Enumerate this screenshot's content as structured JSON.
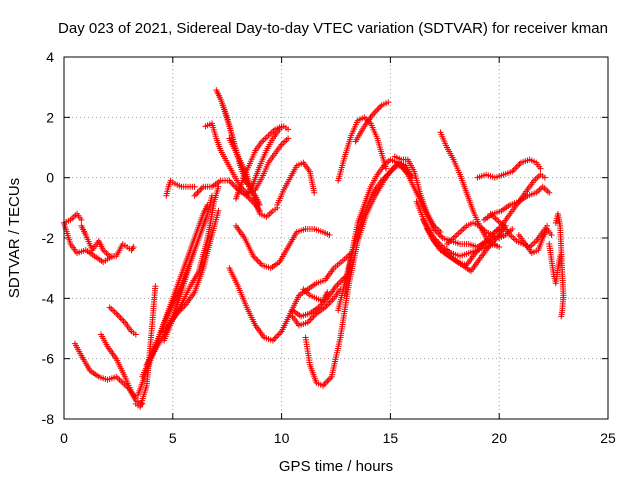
{
  "chart_data": {
    "type": "scatter",
    "title": "Day 023 of 2021, Sidereal Day-to-day VTEC variation (SDTVAR) for receiver kman",
    "xlabel": "GPS time / hours",
    "ylabel": "SDTVAR / TECUs",
    "xlim": [
      0,
      25
    ],
    "ylim": [
      -8,
      4
    ],
    "xticks": [
      "0",
      "5",
      "10",
      "15",
      "20",
      "25"
    ],
    "yticks": [
      "-8",
      "-6",
      "-4",
      "-2",
      "0",
      "2",
      "4"
    ],
    "grid": true,
    "marker": "+",
    "color": "#ff0000",
    "series": [
      {
        "x": [
          0.0,
          0.3,
          0.6,
          0.8
        ],
        "y": [
          -1.5,
          -1.4,
          -1.2,
          -1.4
        ]
      },
      {
        "x": [
          0.8,
          1.0,
          1.3,
          1.6,
          1.8,
          2.1,
          2.4,
          2.7,
          2.9,
          3.1,
          3.2
        ],
        "y": [
          -1.6,
          -1.9,
          -2.4,
          -2.1,
          -2.4,
          -2.6,
          -2.6,
          -2.2,
          -2.3,
          -2.4,
          -2.3
        ]
      },
      {
        "x": [
          0.0,
          0.3,
          0.6,
          1.0,
          1.4,
          1.8,
          2.0,
          2.3
        ],
        "y": [
          -1.5,
          -2.2,
          -2.5,
          -2.4,
          -2.6,
          -2.8,
          -2.7,
          -2.6
        ]
      },
      {
        "x": [
          0.5,
          0.8,
          1.2,
          1.6,
          2.0,
          2.4,
          2.7,
          3.0,
          3.3,
          3.6
        ],
        "y": [
          -5.5,
          -5.9,
          -6.4,
          -6.6,
          -6.7,
          -6.6,
          -6.8,
          -7.0,
          -7.4,
          -7.5
        ]
      },
      {
        "x": [
          1.7,
          2.0,
          2.4,
          2.8,
          3.1,
          3.3
        ],
        "y": [
          -5.2,
          -5.6,
          -6.0,
          -6.6,
          -7.1,
          -7.3
        ]
      },
      {
        "x": [
          2.1,
          2.4,
          2.8,
          3.1,
          3.3
        ],
        "y": [
          -4.3,
          -4.5,
          -4.8,
          -5.1,
          -5.2
        ]
      },
      {
        "x": [
          3.3,
          3.5,
          3.8,
          4.0,
          4.2
        ],
        "y": [
          -7.5,
          -7.6,
          -6.9,
          -5.3,
          -3.6
        ]
      },
      {
        "x": [
          3.4,
          3.8,
          4.2,
          4.6,
          5.0,
          5.4,
          5.8,
          6.1,
          6.4,
          6.6
        ],
        "y": [
          -7.2,
          -6.4,
          -5.6,
          -4.8,
          -4.0,
          -3.2,
          -2.4,
          -1.8,
          -1.2,
          -0.9
        ]
      },
      {
        "x": [
          3.6,
          4.0,
          4.4,
          4.8,
          5.2,
          5.6,
          6.0,
          6.3,
          6.6,
          6.8
        ],
        "y": [
          -6.6,
          -5.9,
          -5.2,
          -4.5,
          -3.9,
          -3.2,
          -2.4,
          -1.8,
          -1.2,
          -0.6
        ]
      },
      {
        "x": [
          3.8,
          4.2,
          4.6,
          5.0,
          5.4,
          5.8,
          6.2,
          6.5
        ],
        "y": [
          -6.2,
          -5.7,
          -5.2,
          -4.6,
          -3.8,
          -2.8,
          -2.0,
          -1.4
        ]
      },
      {
        "x": [
          4.5,
          4.8,
          5.2,
          5.6,
          6.0,
          6.4,
          6.8,
          7.1
        ],
        "y": [
          -5.1,
          -4.9,
          -4.5,
          -4.2,
          -3.8,
          -3.0,
          -1.9,
          -1.1
        ]
      },
      {
        "x": [
          4.6,
          5.0,
          5.4,
          5.8,
          6.2,
          6.6,
          6.9,
          7.1
        ],
        "y": [
          -5.4,
          -4.7,
          -4.2,
          -3.6,
          -3.1,
          -2.0,
          -0.8,
          -0.3
        ]
      },
      {
        "x": [
          4.7,
          4.8,
          4.9,
          5.1,
          5.4,
          5.7,
          6.0
        ],
        "y": [
          -0.6,
          -0.3,
          -0.1,
          -0.2,
          -0.3,
          -0.3,
          -0.3
        ]
      },
      {
        "x": [
          6.0,
          6.4,
          6.8,
          7.2,
          7.6,
          8.0,
          8.4,
          8.8,
          9.0
        ],
        "y": [
          -0.6,
          -0.3,
          -0.3,
          -0.1,
          -0.1,
          -0.4,
          -0.6,
          -0.9,
          -1.1
        ]
      },
      {
        "x": [
          6.5,
          6.8,
          7.0,
          7.2,
          7.5,
          7.8,
          8.1,
          8.4,
          8.6,
          8.7
        ],
        "y": [
          1.7,
          1.8,
          1.3,
          0.9,
          0.5,
          0.1,
          -0.3,
          -0.5,
          -0.5,
          -0.2
        ]
      },
      {
        "x": [
          7.0,
          7.2,
          7.5,
          7.8,
          8.1,
          8.4
        ],
        "y": [
          2.9,
          2.6,
          2.0,
          1.2,
          0.4,
          -0.2
        ]
      },
      {
        "x": [
          7.3,
          7.6,
          7.9,
          8.2,
          8.5,
          8.8,
          9.0
        ],
        "y": [
          2.4,
          1.7,
          0.9,
          0.2,
          -0.3,
          -0.6,
          -0.9
        ]
      },
      {
        "x": [
          7.6,
          8.0,
          8.4,
          8.7,
          9.0,
          9.3,
          9.6,
          9.8
        ],
        "y": [
          1.3,
          0.7,
          0.1,
          -0.6,
          -1.2,
          -1.3,
          -1.1,
          -1.0
        ]
      },
      {
        "x": [
          8.4,
          8.7,
          9.0,
          9.3,
          9.6,
          9.9,
          10.1,
          10.3
        ],
        "y": [
          -0.6,
          -0.2,
          0.4,
          0.9,
          1.3,
          1.6,
          1.7,
          1.6
        ]
      },
      {
        "x": [
          8.8,
          9.1,
          9.4,
          9.7,
          10.0,
          10.3
        ],
        "y": [
          -0.4,
          0.0,
          0.5,
          0.8,
          1.1,
          1.3
        ]
      },
      {
        "x": [
          7.9,
          8.2,
          8.5,
          8.8,
          9.1,
          9.4,
          9.7,
          10.0
        ],
        "y": [
          -0.7,
          -0.1,
          0.4,
          0.9,
          1.2,
          1.4,
          1.6,
          1.7
        ]
      },
      {
        "x": [
          9.8,
          10.1,
          10.4,
          10.7,
          11.0,
          11.3,
          11.5
        ],
        "y": [
          -0.9,
          -0.4,
          0.0,
          0.4,
          0.5,
          0.2,
          -0.5
        ]
      },
      {
        "x": [
          7.9,
          8.3,
          8.7,
          9.1,
          9.5,
          9.9,
          10.3,
          10.7,
          11.1,
          11.5,
          11.9,
          12.2
        ],
        "y": [
          -1.6,
          -2.0,
          -2.6,
          -2.9,
          -3.0,
          -2.8,
          -2.3,
          -1.8,
          -1.7,
          -1.7,
          -1.8,
          -1.9
        ]
      },
      {
        "x": [
          7.6,
          8.0,
          8.4,
          8.8,
          9.2,
          9.6,
          10.0,
          10.4,
          10.8,
          11.2,
          11.6,
          12.0,
          12.4,
          12.9,
          13.2
        ],
        "y": [
          -3.0,
          -3.6,
          -4.3,
          -4.9,
          -5.3,
          -5.4,
          -5.1,
          -4.5,
          -3.9,
          -3.7,
          -3.5,
          -3.4,
          -3.0,
          -2.7,
          -2.5
        ]
      },
      {
        "x": [
          10.5,
          10.9,
          11.3,
          11.7,
          12.1,
          12.5,
          12.9
        ],
        "y": [
          -4.4,
          -4.6,
          -4.5,
          -4.3,
          -4.0,
          -3.6,
          -3.3
        ]
      },
      {
        "x": [
          10.5,
          10.8,
          11.2,
          11.6,
          12.0,
          12.4,
          12.7
        ],
        "y": [
          -4.6,
          -4.9,
          -4.8,
          -4.5,
          -4.3,
          -4.0,
          -3.7
        ]
      },
      {
        "x": [
          11.0,
          11.3,
          11.6,
          11.9,
          12.1
        ],
        "y": [
          -3.7,
          -3.9,
          -4.0,
          -4.1,
          -3.8
        ]
      },
      {
        "x": [
          11.1,
          11.3,
          11.6,
          11.9,
          12.3,
          12.7,
          13.1,
          13.5,
          13.9,
          14.3,
          14.7,
          15.1,
          15.4,
          15.7,
          16.0
        ],
        "y": [
          -5.3,
          -6.2,
          -6.8,
          -6.9,
          -6.6,
          -5.3,
          -3.5,
          -2.1,
          -1.2,
          -0.6,
          -0.1,
          0.3,
          0.5,
          0.4,
          0.0
        ]
      },
      {
        "x": [
          12.6,
          13.0,
          13.4,
          13.8,
          14.2,
          14.6,
          15.0,
          15.3,
          15.6,
          15.9
        ],
        "y": [
          -4.4,
          -3.2,
          -2.1,
          -1.2,
          -0.5,
          -0.1,
          0.2,
          0.4,
          0.4,
          0.1
        ]
      },
      {
        "x": [
          12.9,
          13.2,
          13.5,
          13.8,
          14.1,
          14.4,
          14.7,
          15.0,
          15.3,
          15.6,
          15.9
        ],
        "y": [
          -3.9,
          -2.6,
          -1.5,
          -0.9,
          -0.3,
          0.1,
          0.4,
          0.6,
          0.5,
          0.3,
          0.1
        ]
      },
      {
        "x": [
          12.6,
          12.9,
          13.2,
          13.5,
          13.8,
          14.1,
          14.4,
          14.6,
          14.8
        ],
        "y": [
          -0.1,
          0.7,
          1.4,
          1.9,
          2.0,
          1.8,
          1.3,
          0.8,
          0.3
        ]
      },
      {
        "x": [
          13.4,
          13.8,
          14.2,
          14.6,
          14.9
        ],
        "y": [
          1.2,
          1.7,
          2.1,
          2.4,
          2.5
        ]
      },
      {
        "x": [
          15.2,
          15.5,
          15.8,
          16.1,
          16.4,
          16.7,
          17.0,
          17.3
        ],
        "y": [
          0.7,
          0.6,
          0.6,
          0.2,
          -0.6,
          -1.2,
          -1.6,
          -1.8
        ]
      },
      {
        "x": [
          15.4,
          15.8,
          16.2,
          16.6,
          17.0,
          17.4,
          17.8,
          18.2,
          18.6,
          19.0,
          19.4,
          19.8,
          20.2
        ],
        "y": [
          0.5,
          0.1,
          -0.5,
          -1.1,
          -1.7,
          -2.0,
          -2.1,
          -2.2,
          -2.2,
          -2.3,
          -2.1,
          -1.8,
          -1.7
        ]
      },
      {
        "x": [
          16.2,
          16.6,
          17.0,
          17.4,
          17.8,
          18.2,
          18.6,
          19.0,
          19.4,
          19.8
        ],
        "y": [
          -0.8,
          -1.5,
          -2.0,
          -2.3,
          -2.5,
          -2.6,
          -2.5,
          -2.4,
          -2.3,
          -2.2
        ]
      },
      {
        "x": [
          16.5,
          16.9,
          17.3,
          17.7,
          18.1,
          18.5,
          18.9,
          19.3,
          19.7,
          20.1
        ],
        "y": [
          -1.4,
          -2.0,
          -2.4,
          -2.6,
          -2.8,
          -2.9,
          -2.5,
          -2.2,
          -2.0,
          -1.9
        ]
      },
      {
        "x": [
          16.7,
          17.1,
          17.5,
          17.9,
          18.3,
          18.7,
          19.1,
          19.5,
          19.9,
          20.3
        ],
        "y": [
          -1.7,
          -2.2,
          -2.5,
          -2.7,
          -2.9,
          -3.1,
          -2.7,
          -2.3,
          -2.0,
          -1.6
        ]
      },
      {
        "x": [
          17.3,
          17.6,
          17.9,
          18.2,
          18.5,
          18.8,
          19.1,
          19.4,
          19.7,
          20.0
        ],
        "y": [
          1.5,
          1.0,
          0.6,
          0.1,
          -0.5,
          -1.1,
          -1.6,
          -2.0,
          -2.2,
          -2.3
        ]
      },
      {
        "x": [
          17.6,
          17.9,
          18.2,
          18.5,
          18.8,
          19.1,
          19.4,
          19.7,
          20.0,
          20.3,
          20.6
        ],
        "y": [
          -2.2,
          -2.0,
          -1.8,
          -1.6,
          -1.5,
          -1.6,
          -1.8,
          -1.9,
          -2.0,
          -1.9,
          -1.7
        ]
      },
      {
        "x": [
          19.0,
          19.4,
          19.8,
          20.2,
          20.6,
          21.0,
          21.4,
          21.7,
          21.9
        ],
        "y": [
          0.0,
          0.1,
          0.0,
          0.1,
          0.2,
          0.5,
          0.6,
          0.5,
          0.3
        ]
      },
      {
        "x": [
          19.3,
          19.7,
          20.1,
          20.5,
          20.9,
          21.3,
          21.7,
          22.0,
          22.3
        ],
        "y": [
          -1.4,
          -1.2,
          -1.1,
          -0.9,
          -0.8,
          -0.6,
          -0.5,
          -0.3,
          -0.5
        ]
      },
      {
        "x": [
          19.8,
          20.1,
          20.4,
          20.7,
          21.0,
          21.3,
          21.6,
          21.9,
          22.1
        ],
        "y": [
          -1.8,
          -1.6,
          -1.3,
          -1.0,
          -0.7,
          -0.4,
          -0.1,
          0.1,
          0.0
        ]
      },
      {
        "x": [
          19.6,
          19.9,
          20.2,
          20.5,
          20.8,
          21.1,
          21.4,
          21.7,
          22.0,
          22.2
        ],
        "y": [
          -1.2,
          -1.4,
          -1.6,
          -1.9,
          -2.1,
          -2.2,
          -2.3,
          -2.1,
          -1.8,
          -1.6
        ]
      },
      {
        "x": [
          20.9,
          21.2,
          21.5,
          21.8,
          22.0,
          22.2,
          22.4
        ],
        "y": [
          -1.9,
          -2.2,
          -2.5,
          -2.4,
          -2.0,
          -1.7,
          -1.9
        ]
      },
      {
        "x": [
          22.6,
          22.7,
          22.8,
          22.85,
          22.9,
          22.95,
          22.9,
          22.85
        ],
        "y": [
          -1.5,
          -1.2,
          -1.6,
          -2.4,
          -3.2,
          -3.9,
          -4.4,
          -4.6
        ]
      },
      {
        "x": [
          22.3,
          22.4,
          22.5,
          22.6,
          22.7,
          22.8
        ],
        "y": [
          -2.2,
          -2.7,
          -3.2,
          -3.5,
          -3.0,
          -2.6
        ]
      }
    ]
  }
}
